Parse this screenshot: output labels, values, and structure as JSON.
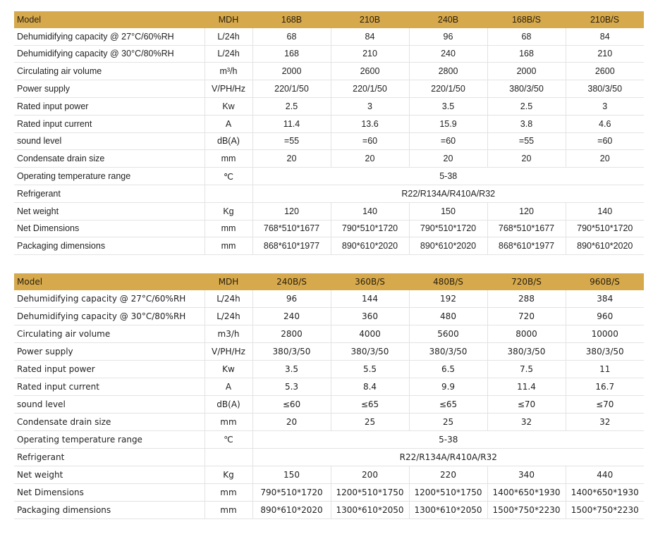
{
  "header_color": "#d6a94c",
  "tables": [
    {
      "header": [
        "Model",
        "MDH",
        "168B",
        "210B",
        "240B",
        "168B/S",
        "210B/S"
      ],
      "rows": [
        {
          "label": "Dehumidifying capacity @ 27°C/60%RH",
          "unit": "L/24h",
          "values": [
            "68",
            "84",
            "96",
            "68",
            "84"
          ]
        },
        {
          "label": "Dehumidifying capacity @ 30°C/80%RH",
          "unit": "L/24h",
          "values": [
            "168",
            "210",
            "240",
            "168",
            "210"
          ]
        },
        {
          "label": "Circulating air volume",
          "unit": "m³/h",
          "values": [
            "2000",
            "2600",
            "2800",
            "2000",
            "2600"
          ]
        },
        {
          "label": "Power supply",
          "unit": "V/PH/Hz",
          "values": [
            "220/1/50",
            "220/1/50",
            "220/1/50",
            "380/3/50",
            "380/3/50"
          ]
        },
        {
          "label": "Rated input power",
          "unit": "Kw",
          "values": [
            "2.5",
            "3",
            "3.5",
            "2.5",
            "3"
          ]
        },
        {
          "label": "Rated input current",
          "unit": "A",
          "values": [
            "11.4",
            "13.6",
            "15.9",
            "3.8",
            "4.6"
          ]
        },
        {
          "label": "sound level",
          "unit": "dB(A)",
          "values": [
            "=55",
            "=60",
            "=60",
            "=55",
            "=60"
          ]
        },
        {
          "label": "Condensate drain size",
          "unit": "mm",
          "values": [
            "20",
            "20",
            "20",
            "20",
            "20"
          ]
        },
        {
          "label": "Operating temperature range",
          "unit": "℃",
          "merged": "5-38"
        },
        {
          "label": "Refrigerant",
          "unit": "",
          "merged": "R22/R134A/R410A/R32"
        },
        {
          "label": "Net weight",
          "unit": "Kg",
          "values": [
            "120",
            "140",
            "150",
            "120",
            "140"
          ]
        },
        {
          "label": "Net Dimensions",
          "unit": "mm",
          "values": [
            "768*510*1677",
            "790*510*1720",
            "790*510*1720",
            "768*510*1677",
            "790*510*1720"
          ]
        },
        {
          "label": "Packaging dimensions",
          "unit": "mm",
          "values": [
            "868*610*1977",
            "890*610*2020",
            "890*610*2020",
            "868*610*1977",
            "890*610*2020"
          ]
        }
      ]
    },
    {
      "header": [
        "Model",
        "MDH",
        "240B/S",
        "360B/S",
        "480B/S",
        "720B/S",
        "960B/S"
      ],
      "rows": [
        {
          "label": "Dehumidifying capacity @ 27°C/60%RH",
          "unit": "L/24h",
          "values": [
            "96",
            "144",
            "192",
            "288",
            "384"
          ]
        },
        {
          "label": "Dehumidifying capacity @ 30°C/80%RH",
          "unit": "L/24h",
          "values": [
            "240",
            "360",
            "480",
            "720",
            "960"
          ]
        },
        {
          "label": "Circulating air volume",
          "unit": "m3/h",
          "values": [
            "2800",
            "4000",
            "5600",
            "8000",
            "10000"
          ]
        },
        {
          "label": "Power supply",
          "unit": "V/PH/Hz",
          "values": [
            "380/3/50",
            "380/3/50",
            "380/3/50",
            "380/3/50",
            "380/3/50"
          ]
        },
        {
          "label": "Rated input power",
          "unit": "Kw",
          "values": [
            "3.5",
            "5.5",
            "6.5",
            "7.5",
            "11"
          ]
        },
        {
          "label": "Rated input current",
          "unit": "A",
          "values": [
            "5.3",
            "8.4",
            "9.9",
            "11.4",
            "16.7"
          ]
        },
        {
          "label": "sound level",
          "unit": "dB(A)",
          "values": [
            "≤60",
            "≤65",
            "≤65",
            "≤70",
            "≤70"
          ]
        },
        {
          "label": "Condensate drain size",
          "unit": "mm",
          "values": [
            "20",
            "25",
            "25",
            "32",
            "32"
          ]
        },
        {
          "label": "Operating temperature range",
          "unit": "℃",
          "merged": "5-38"
        },
        {
          "label": "Refrigerant",
          "unit": "",
          "merged": "R22/R134A/R410A/R32"
        },
        {
          "label": "Net weight",
          "unit": "Kg",
          "values": [
            "150",
            "200",
            "220",
            "340",
            "440"
          ]
        },
        {
          "label": "Net Dimensions",
          "unit": "mm",
          "values": [
            "790*510*1720",
            "1200*510*1750",
            "1200*510*1750",
            "1400*650*1930",
            "1400*650*1930"
          ]
        },
        {
          "label": "Packaging dimensions",
          "unit": "mm",
          "values": [
            "890*610*2020",
            "1300*610*2050",
            "1300*610*2050",
            "1500*750*2230",
            "1500*750*2230"
          ]
        }
      ]
    }
  ]
}
